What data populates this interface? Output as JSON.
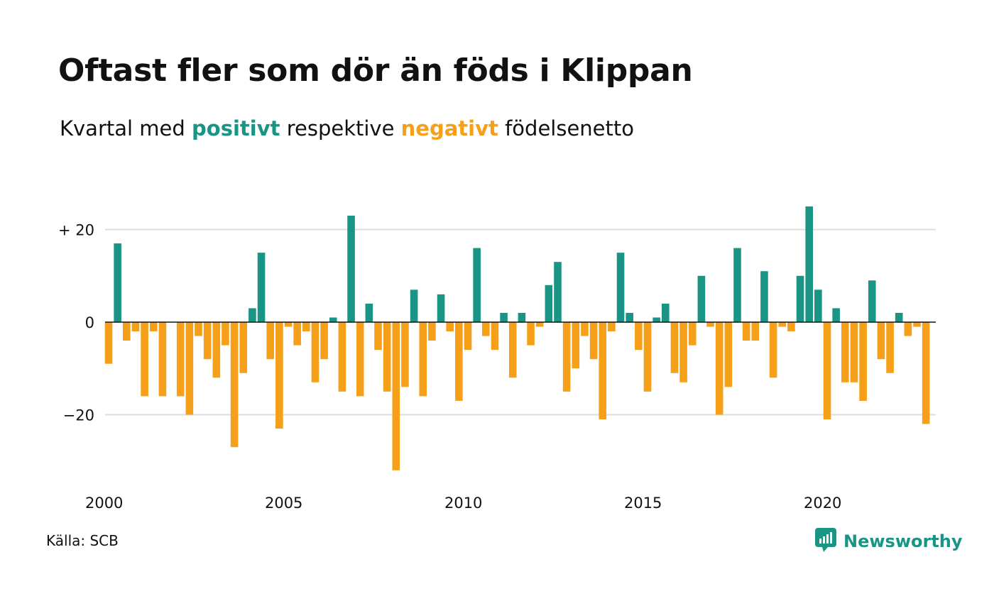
{
  "title": "Oftast fler som dör än föds i Klippan",
  "subtitle": {
    "before": "Kvartal med ",
    "positive_word": "positivt",
    "middle": " respektive ",
    "negative_word": "negativt",
    "after": " födelsenetto"
  },
  "source": "Källa: SCB",
  "brand": {
    "name": "Newsworthy",
    "icon": "newsworthy-chart-icon",
    "color": "#1a9585"
  },
  "colors": {
    "positive": "#1a9585",
    "negative": "#f6a01a",
    "grid": "#dddddd",
    "zero_line": "#111111"
  },
  "chart_data": {
    "type": "bar",
    "title": "Oftast fler som dör än föds i Klippan",
    "subtitle": "Kvartal med positivt respektive negativt födelsenetto",
    "x_start": "2000 Q1",
    "frequency": "quarterly",
    "x_tick_labels": [
      "2000",
      "2005",
      "2010",
      "2015",
      "2020"
    ],
    "y_tick_values": [
      20,
      0,
      -20
    ],
    "y_tick_labels": [
      "+ 20",
      "0",
      "−20"
    ],
    "ylim": [
      -32,
      25
    ],
    "grid": true,
    "values": [
      -9,
      17,
      -4,
      -2,
      -16,
      -2,
      -16,
      0,
      -16,
      -20,
      -3,
      -8,
      -12,
      -5,
      -27,
      -11,
      3,
      15,
      -8,
      -23,
      -1,
      -5,
      -2,
      -13,
      -8,
      1,
      -15,
      23,
      -16,
      4,
      -6,
      -15,
      -32,
      -14,
      7,
      -16,
      -4,
      6,
      -2,
      -17,
      -6,
      16,
      -3,
      -6,
      2,
      -12,
      2,
      -5,
      -1,
      8,
      13,
      -15,
      -10,
      -3,
      -8,
      -21,
      -2,
      15,
      2,
      -6,
      -15,
      1,
      4,
      -11,
      -13,
      -5,
      10,
      -1,
      -20,
      -14,
      16,
      -4,
      -4,
      11,
      -12,
      -1,
      -2,
      10,
      25,
      7,
      -21,
      3,
      -13,
      -13,
      -17,
      9,
      -8,
      -11,
      2,
      -3,
      -1,
      -22
    ]
  }
}
